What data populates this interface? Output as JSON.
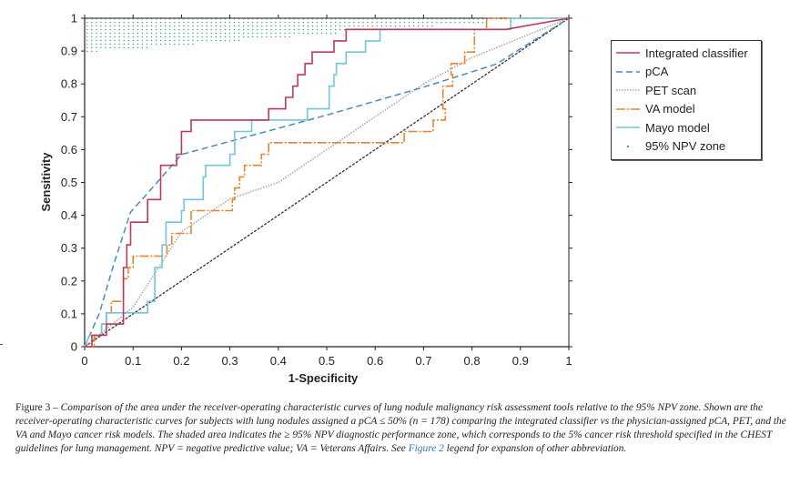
{
  "chart_data": {
    "type": "line",
    "title": "",
    "xlabel": "1-Specificity",
    "ylabel": "Sensitivity",
    "xlim": [
      0,
      1
    ],
    "ylim": [
      0,
      1
    ],
    "x_ticks": [
      "0",
      "0.1",
      "0.2",
      "0.3",
      "0.4",
      "0.5",
      "0.6",
      "0.7",
      "0.8",
      "0.9",
      "1"
    ],
    "y_ticks": [
      "0",
      "0.1",
      "0.2",
      "0.3",
      "0.4",
      "0.5",
      "0.6",
      "0.7",
      "0.8",
      "0.9",
      "1"
    ],
    "grid": false,
    "legend_position": "right",
    "reference_line": {
      "name": "chance",
      "points": [
        [
          0,
          0
        ],
        [
          1,
          1
        ]
      ]
    },
    "npv_zone": {
      "name": "95% NPV zone",
      "y_min_at_x0": 0.9,
      "y_min_at_x1": 1.0,
      "y_max": 1.0
    },
    "series": [
      {
        "name": "Integrated classifier",
        "color": "#c0395a",
        "style": "solid",
        "points": [
          [
            0,
            0
          ],
          [
            0.015,
            0
          ],
          [
            0.015,
            0.035
          ],
          [
            0.035,
            0.035
          ],
          [
            0.035,
            0.035
          ],
          [
            0.045,
            0.035
          ],
          [
            0.045,
            0.069
          ],
          [
            0.08,
            0.069
          ],
          [
            0.08,
            0.138
          ],
          [
            0.08,
            0.241
          ],
          [
            0.087,
            0.241
          ],
          [
            0.087,
            0.31
          ],
          [
            0.095,
            0.31
          ],
          [
            0.095,
            0.379
          ],
          [
            0.13,
            0.379
          ],
          [
            0.13,
            0.448
          ],
          [
            0.157,
            0.448
          ],
          [
            0.157,
            0.517
          ],
          [
            0.157,
            0.552
          ],
          [
            0.19,
            0.552
          ],
          [
            0.19,
            0.586
          ],
          [
            0.2,
            0.586
          ],
          [
            0.2,
            0.655
          ],
          [
            0.22,
            0.655
          ],
          [
            0.22,
            0.69
          ],
          [
            0.38,
            0.69
          ],
          [
            0.38,
            0.724
          ],
          [
            0.415,
            0.724
          ],
          [
            0.415,
            0.759
          ],
          [
            0.43,
            0.759
          ],
          [
            0.43,
            0.793
          ],
          [
            0.44,
            0.793
          ],
          [
            0.44,
            0.828
          ],
          [
            0.455,
            0.828
          ],
          [
            0.455,
            0.862
          ],
          [
            0.47,
            0.862
          ],
          [
            0.47,
            0.897
          ],
          [
            0.515,
            0.897
          ],
          [
            0.515,
            0.931
          ],
          [
            0.54,
            0.931
          ],
          [
            0.54,
            0.966
          ],
          [
            0.87,
            0.966
          ],
          [
            1,
            1
          ]
        ]
      },
      {
        "name": "pCA",
        "color": "#4a8bc2",
        "style": "dashed",
        "points": [
          [
            0,
            0
          ],
          [
            0.03,
            0.1
          ],
          [
            0.06,
            0.25
          ],
          [
            0.095,
            0.41
          ],
          [
            0.12,
            0.45
          ],
          [
            0.2,
            0.585
          ],
          [
            0.3,
            0.625
          ],
          [
            0.5,
            0.705
          ],
          [
            0.7,
            0.79
          ],
          [
            0.85,
            0.86
          ],
          [
            1,
            1
          ]
        ]
      },
      {
        "name": "PET scan",
        "color": "#aaaaaa",
        "style": "dotted",
        "points": [
          [
            0,
            0
          ],
          [
            0.1,
            0.12
          ],
          [
            0.2,
            0.35
          ],
          [
            0.3,
            0.45
          ],
          [
            0.4,
            0.5
          ],
          [
            0.5,
            0.6
          ],
          [
            0.6,
            0.7
          ],
          [
            0.7,
            0.8
          ],
          [
            0.8,
            0.88
          ],
          [
            0.9,
            0.94
          ],
          [
            1,
            1
          ]
        ]
      },
      {
        "name": "VA model",
        "color": "#e8852c",
        "style": "dash-dot",
        "points": [
          [
            0,
            0
          ],
          [
            0.02,
            0
          ],
          [
            0.02,
            0.035
          ],
          [
            0.035,
            0.035
          ],
          [
            0.035,
            0.069
          ],
          [
            0.045,
            0.069
          ],
          [
            0.045,
            0.103
          ],
          [
            0.055,
            0.103
          ],
          [
            0.055,
            0.138
          ],
          [
            0.08,
            0.138
          ],
          [
            0.08,
            0.207
          ],
          [
            0.09,
            0.207
          ],
          [
            0.09,
            0.241
          ],
          [
            0.1,
            0.241
          ],
          [
            0.1,
            0.276
          ],
          [
            0.17,
            0.276
          ],
          [
            0.17,
            0.31
          ],
          [
            0.18,
            0.31
          ],
          [
            0.18,
            0.345
          ],
          [
            0.22,
            0.345
          ],
          [
            0.22,
            0.414
          ],
          [
            0.305,
            0.414
          ],
          [
            0.305,
            0.448
          ],
          [
            0.31,
            0.448
          ],
          [
            0.31,
            0.483
          ],
          [
            0.32,
            0.483
          ],
          [
            0.32,
            0.517
          ],
          [
            0.33,
            0.517
          ],
          [
            0.33,
            0.552
          ],
          [
            0.365,
            0.552
          ],
          [
            0.365,
            0.586
          ],
          [
            0.38,
            0.586
          ],
          [
            0.38,
            0.621
          ],
          [
            0.66,
            0.621
          ],
          [
            0.66,
            0.655
          ],
          [
            0.72,
            0.655
          ],
          [
            0.72,
            0.69
          ],
          [
            0.745,
            0.69
          ],
          [
            0.745,
            0.724
          ],
          [
            0.74,
            0.724
          ],
          [
            0.74,
            0.793
          ],
          [
            0.76,
            0.793
          ],
          [
            0.76,
            0.828
          ],
          [
            0.757,
            0.828
          ],
          [
            0.757,
            0.862
          ],
          [
            0.785,
            0.862
          ],
          [
            0.785,
            0.897
          ],
          [
            0.805,
            0.897
          ],
          [
            0.805,
            0.966
          ],
          [
            0.83,
            0.966
          ],
          [
            0.83,
            1
          ],
          [
            1,
            1
          ]
        ]
      },
      {
        "name": "Mayo model",
        "color": "#6fc6de",
        "style": "solid",
        "points": [
          [
            0,
            0
          ],
          [
            0.01,
            0.035
          ],
          [
            0.035,
            0.035
          ],
          [
            0.035,
            0.069
          ],
          [
            0.045,
            0.069
          ],
          [
            0.045,
            0.103
          ],
          [
            0.13,
            0.103
          ],
          [
            0.13,
            0.138
          ],
          [
            0.145,
            0.138
          ],
          [
            0.145,
            0.241
          ],
          [
            0.16,
            0.241
          ],
          [
            0.16,
            0.31
          ],
          [
            0.168,
            0.31
          ],
          [
            0.168,
            0.379
          ],
          [
            0.2,
            0.379
          ],
          [
            0.2,
            0.414
          ],
          [
            0.205,
            0.414
          ],
          [
            0.205,
            0.448
          ],
          [
            0.245,
            0.448
          ],
          [
            0.245,
            0.517
          ],
          [
            0.25,
            0.517
          ],
          [
            0.25,
            0.552
          ],
          [
            0.3,
            0.552
          ],
          [
            0.3,
            0.586
          ],
          [
            0.31,
            0.586
          ],
          [
            0.31,
            0.655
          ],
          [
            0.345,
            0.655
          ],
          [
            0.345,
            0.69
          ],
          [
            0.46,
            0.69
          ],
          [
            0.46,
            0.724
          ],
          [
            0.505,
            0.724
          ],
          [
            0.505,
            0.793
          ],
          [
            0.515,
            0.793
          ],
          [
            0.515,
            0.828
          ],
          [
            0.52,
            0.828
          ],
          [
            0.52,
            0.862
          ],
          [
            0.54,
            0.862
          ],
          [
            0.54,
            0.897
          ],
          [
            0.58,
            0.897
          ],
          [
            0.58,
            0.931
          ],
          [
            0.61,
            0.931
          ],
          [
            0.61,
            0.966
          ],
          [
            0.88,
            0.966
          ],
          [
            0.88,
            1
          ],
          [
            1,
            1
          ]
        ]
      }
    ]
  },
  "legend": {
    "items": [
      {
        "label": "Integrated classifier",
        "color": "#c0395a",
        "style": "solid"
      },
      {
        "label": "pCA",
        "color": "#4a8bc2",
        "style": "dashed"
      },
      {
        "label": "PET scan",
        "color": "#aaaaaa",
        "style": "dotted"
      },
      {
        "label": "VA model",
        "color": "#e8852c",
        "style": "dash-dot"
      },
      {
        "label": "Mayo model",
        "color": "#6fc6de",
        "style": "solid"
      },
      {
        "label": "95% NPV zone",
        "color": "#3aa57a",
        "style": "dot"
      }
    ]
  },
  "caption": {
    "figure_label": "Figure 3 –",
    "text_1": " Comparison of the area under the receiver-operating characteristic curves of lung nodule malignancy risk assessment tools relative to the 95% NPV zone. Shown are the receiver-operating characteristic curves for subjects with lung nodules assigned a pCA ≤ 50% (n = 178) comparing the integrated classifier vs the physician-assigned pCA, PET, and the VA and Mayo cancer risk models. The shaded area indicates the ≥ 95% NPV diagnostic performance zone, which corresponds to the 5% cancer risk threshold specified in the CHEST guidelines for lung management. NPV = negative predictive value; VA = Veterans Affairs. See ",
    "link_text": "Figure 2",
    "text_2": " legend for expansion of other abbreviation."
  }
}
